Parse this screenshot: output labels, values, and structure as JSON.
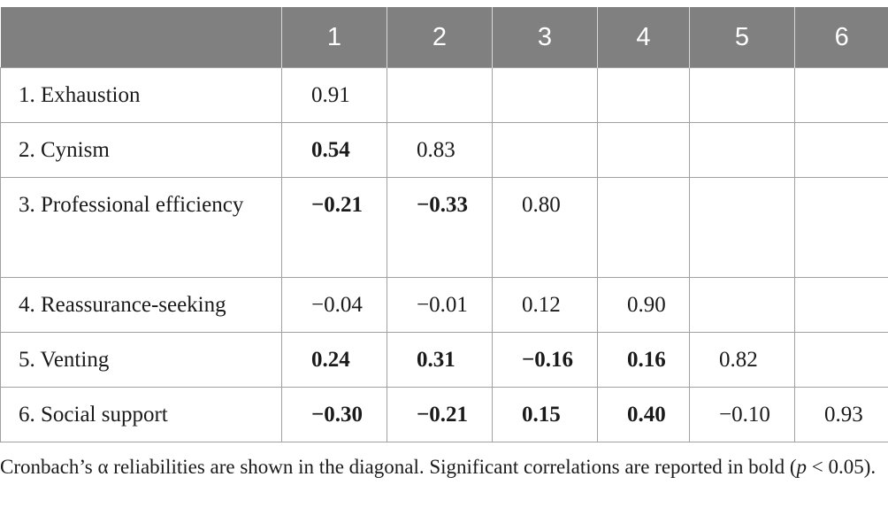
{
  "table": {
    "headers": [
      "",
      "1",
      "2",
      "3",
      "4",
      "5",
      "6"
    ],
    "rows": [
      {
        "label": "1. Exhaustion",
        "cells": [
          {
            "v": "0.91",
            "b": false
          },
          {
            "v": "",
            "b": false
          },
          {
            "v": "",
            "b": false
          },
          {
            "v": "",
            "b": false
          },
          {
            "v": "",
            "b": false
          },
          {
            "v": "",
            "b": false
          }
        ]
      },
      {
        "label": "2. Cynism",
        "cells": [
          {
            "v": "0.54",
            "b": true
          },
          {
            "v": "0.83",
            "b": false
          },
          {
            "v": "",
            "b": false
          },
          {
            "v": "",
            "b": false
          },
          {
            "v": "",
            "b": false
          },
          {
            "v": "",
            "b": false
          }
        ]
      },
      {
        "label": "3. Professional efficiency",
        "cells": [
          {
            "v": "−0.21",
            "b": true
          },
          {
            "v": "−0.33",
            "b": true
          },
          {
            "v": "0.80",
            "b": false
          },
          {
            "v": "",
            "b": false
          },
          {
            "v": "",
            "b": false
          },
          {
            "v": "",
            "b": false
          }
        ]
      },
      {
        "label": "4. Reassurance-seeking",
        "cells": [
          {
            "v": "−0.04",
            "b": false
          },
          {
            "v": "−0.01",
            "b": false
          },
          {
            "v": "0.12",
            "b": false
          },
          {
            "v": "0.90",
            "b": false
          },
          {
            "v": "",
            "b": false
          },
          {
            "v": "",
            "b": false
          }
        ]
      },
      {
        "label": "5. Venting",
        "cells": [
          {
            "v": "0.24",
            "b": true
          },
          {
            "v": "0.31",
            "b": true
          },
          {
            "v": "−0.16",
            "b": true
          },
          {
            "v": "0.16",
            "b": true
          },
          {
            "v": "0.82",
            "b": false
          },
          {
            "v": "",
            "b": false
          }
        ]
      },
      {
        "label": "6. Social support",
        "cells": [
          {
            "v": "−0.30",
            "b": true
          },
          {
            "v": "−0.21",
            "b": true
          },
          {
            "v": "0.15",
            "b": true
          },
          {
            "v": "0.40",
            "b": true
          },
          {
            "v": "−0.10",
            "b": false
          },
          {
            "v": "0.93",
            "b": false
          }
        ]
      }
    ]
  },
  "footnote": {
    "text_before": "Cronbach’s α reliabilities are shown in the diagonal. Significant correlations are reported in bold (",
    "p_symbol": "p",
    "text_after": " < 0.05)."
  }
}
